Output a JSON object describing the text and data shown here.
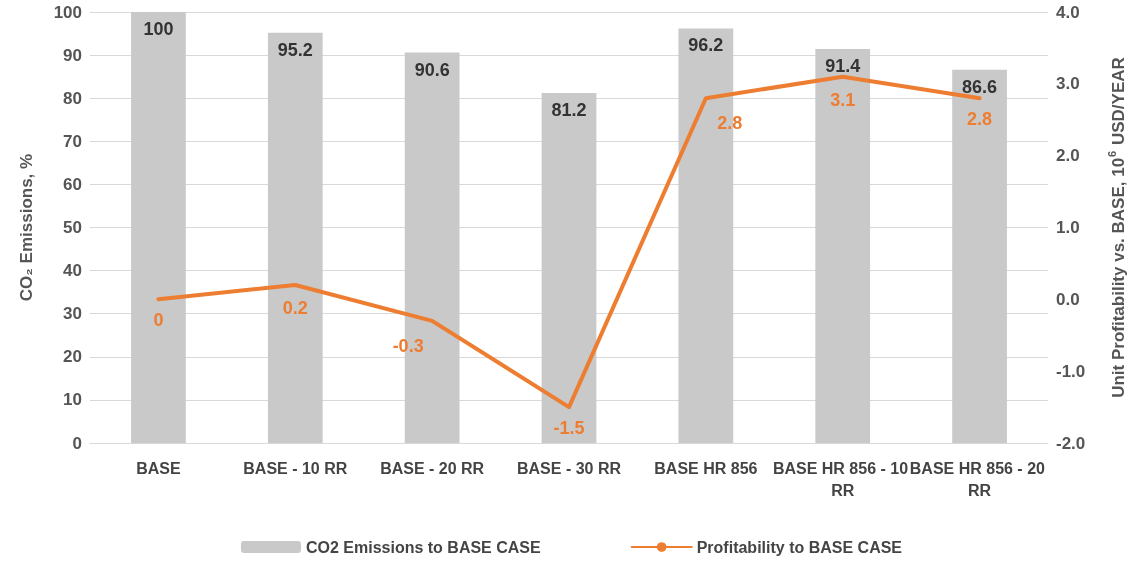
{
  "chart_data": {
    "type": "bar",
    "ylabel": "CO₂ Emissions, %",
    "y2label": "Unit Profitability vs. BASE, 10$^{6}$ USD/YEAR",
    "categories": [
      "BASE",
      "BASE - 10 RR",
      "BASE - 20 RR",
      "BASE - 30 RR",
      "BASE HR 856",
      "BASE HR 856 - 10 RR",
      "BASE HR 856 - 20 RR"
    ],
    "series": [
      {
        "name": "CO2 Emissions to BASE CASE",
        "color": "#c9c9c9",
        "values": [
          100,
          95.2,
          90.6,
          81.2,
          96.2,
          91.4,
          86.6
        ]
      },
      {
        "name": "Profitability to BASE CASE",
        "type": "line",
        "axis": "y2",
        "color": "#ed7d31",
        "values": [
          0,
          0.2,
          -0.3,
          -1.5,
          2.8,
          3.1,
          2.8
        ]
      }
    ],
    "ylim": [
      0,
      100
    ],
    "yticks": [
      0,
      10,
      20,
      30,
      40,
      50,
      60,
      70,
      80,
      90,
      100
    ],
    "y2lim": [
      -2,
      4
    ],
    "y2ticks": [
      {
        "value": -2,
        "label": "-2.0"
      },
      {
        "value": -1,
        "label": "-1.0"
      },
      {
        "value": 0,
        "label": "0.0"
      },
      {
        "value": 1,
        "label": "1.0"
      },
      {
        "value": 2,
        "label": "2.0"
      },
      {
        "value": 3,
        "label": "3.0"
      },
      {
        "value": 4,
        "label": "4.0"
      }
    ],
    "grid": "y",
    "legend": "bottom",
    "data_labels": true,
    "marker": "none",
    "line_style": "solid"
  }
}
